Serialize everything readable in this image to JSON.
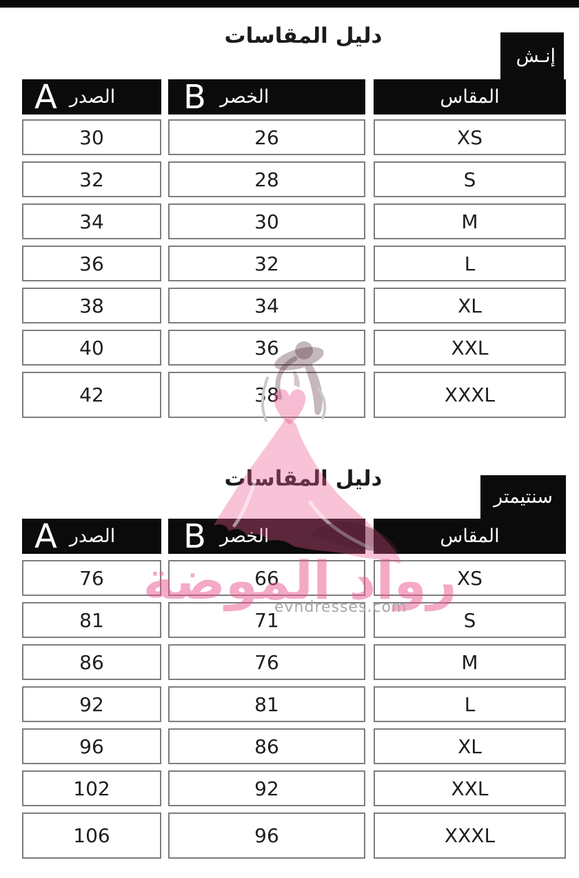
{
  "page": {
    "background": "#ffffff",
    "top_bar_color": "#0a0a0a",
    "header_black": "#0b0b0b",
    "cell_border_gray": "#7d7d7d"
  },
  "watermark": {
    "brand_text": "رواد الموضة",
    "website": "evndresses.com",
    "pink": "#eb568f",
    "dark": "#4a1f30",
    "website_gray": "#a8a8a8"
  },
  "tables": [
    {
      "title": "دليل المقاسات",
      "unit_badge": "إنـش",
      "columns": {
        "chest_letter": "A",
        "chest_label": "الصدر",
        "waist_letter": "B",
        "waist_label": "الخصر",
        "size_label": "المقاس"
      },
      "rows": [
        {
          "chest": "30",
          "waist": "26",
          "size": "XS"
        },
        {
          "chest": "32",
          "waist": "28",
          "size": "S"
        },
        {
          "chest": "34",
          "waist": "30",
          "size": "M"
        },
        {
          "chest": "36",
          "waist": "32",
          "size": "L"
        },
        {
          "chest": "38",
          "waist": "34",
          "size": "XL"
        },
        {
          "chest": "40",
          "waist": "36",
          "size": "XXL"
        },
        {
          "chest": "42",
          "waist": "38",
          "size": "XXXL"
        }
      ]
    },
    {
      "title": "دليل المقاسات",
      "unit_badge": "سنتيمتر",
      "columns": {
        "chest_letter": "A",
        "chest_label": "الصدر",
        "waist_letter": "B",
        "waist_label": "الخصر",
        "size_label": "المقاس"
      },
      "rows": [
        {
          "chest": "76",
          "waist": "66",
          "size": "XS"
        },
        {
          "chest": "81",
          "waist": "71",
          "size": "S"
        },
        {
          "chest": "86",
          "waist": "76",
          "size": "M"
        },
        {
          "chest": "92",
          "waist": "81",
          "size": "L"
        },
        {
          "chest": "96",
          "waist": "86",
          "size": "XL"
        },
        {
          "chest": "102",
          "waist": "92",
          "size": "XXL"
        },
        {
          "chest": "106",
          "waist": "96",
          "size": "XXXL"
        }
      ]
    }
  ]
}
